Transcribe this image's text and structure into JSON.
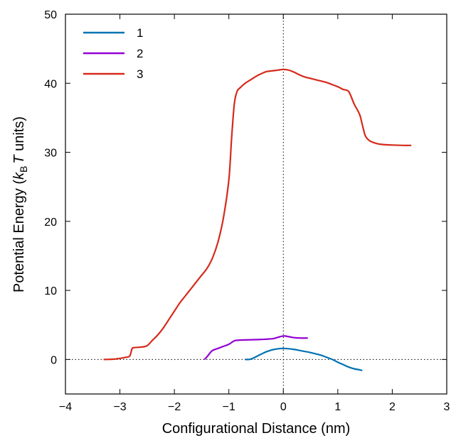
{
  "chart_data": {
    "type": "line",
    "xlabel": "Configurational Distance (nm)",
    "ylabel_parts": {
      "prefix": "Potential Energy (",
      "k": "k",
      "sub": "B",
      "t": "T",
      "suffix": " units)"
    },
    "xlim": [
      -4,
      3
    ],
    "ylim": [
      -5,
      50
    ],
    "xticks": [
      -4,
      -3,
      -2,
      -1,
      0,
      1,
      2,
      3
    ],
    "yticks": [
      0,
      10,
      20,
      30,
      40,
      50
    ],
    "xtick_labels": [
      "−4",
      "−3",
      "−2",
      "−1",
      "0",
      "1",
      "2",
      "3"
    ],
    "ytick_labels": [
      "0",
      "10",
      "20",
      "30",
      "40",
      "50"
    ],
    "reference_lines": {
      "x": 0,
      "y": 0,
      "style": "dotted"
    },
    "legend_position": "top-left",
    "series": [
      {
        "name": "1",
        "color": "#0072b2",
        "points": [
          [
            -0.7,
            0
          ],
          [
            -0.6,
            0.05
          ],
          [
            -0.5,
            0.4
          ],
          [
            -0.4,
            0.8
          ],
          [
            -0.3,
            1.15
          ],
          [
            -0.2,
            1.4
          ],
          [
            -0.1,
            1.55
          ],
          [
            0,
            1.6
          ],
          [
            0.1,
            1.55
          ],
          [
            0.2,
            1.45
          ],
          [
            0.3,
            1.3
          ],
          [
            0.4,
            1.15
          ],
          [
            0.5,
            1.0
          ],
          [
            0.6,
            0.8
          ],
          [
            0.7,
            0.6
          ],
          [
            0.8,
            0.3
          ],
          [
            0.9,
            0
          ],
          [
            1.0,
            -0.4
          ],
          [
            1.1,
            -0.75
          ],
          [
            1.2,
            -1.1
          ],
          [
            1.3,
            -1.35
          ],
          [
            1.4,
            -1.5
          ],
          [
            1.45,
            -1.6
          ]
        ]
      },
      {
        "name": "2",
        "color": "#9400d3",
        "points": [
          [
            -1.45,
            0
          ],
          [
            -1.4,
            0.4
          ],
          [
            -1.35,
            0.9
          ],
          [
            -1.3,
            1.3
          ],
          [
            -1.2,
            1.6
          ],
          [
            -1.1,
            1.9
          ],
          [
            -1.0,
            2.2
          ],
          [
            -0.9,
            2.7
          ],
          [
            -0.8,
            2.8
          ],
          [
            -0.6,
            2.85
          ],
          [
            -0.4,
            2.9
          ],
          [
            -0.2,
            3.0
          ],
          [
            -0.1,
            3.2
          ],
          [
            0,
            3.4
          ],
          [
            0.1,
            3.3
          ],
          [
            0.2,
            3.15
          ],
          [
            0.3,
            3.1
          ],
          [
            0.45,
            3.1
          ]
        ]
      },
      {
        "name": "3",
        "color": "#d62a1a",
        "points": [
          [
            -3.3,
            0
          ],
          [
            -3.1,
            0.05
          ],
          [
            -2.9,
            0.3
          ],
          [
            -2.82,
            0.5
          ],
          [
            -2.78,
            1.5
          ],
          [
            -2.75,
            1.7
          ],
          [
            -2.6,
            1.8
          ],
          [
            -2.5,
            2.0
          ],
          [
            -2.4,
            2.8
          ],
          [
            -2.3,
            3.6
          ],
          [
            -2.2,
            4.6
          ],
          [
            -2.1,
            5.8
          ],
          [
            -2.0,
            7.0
          ],
          [
            -1.9,
            8.2
          ],
          [
            -1.8,
            9.2
          ],
          [
            -1.7,
            10.2
          ],
          [
            -1.6,
            11.2
          ],
          [
            -1.5,
            12.2
          ],
          [
            -1.4,
            13.2
          ],
          [
            -1.3,
            14.7
          ],
          [
            -1.2,
            17.0
          ],
          [
            -1.1,
            20.5
          ],
          [
            -1.0,
            26.0
          ],
          [
            -0.95,
            32.0
          ],
          [
            -0.9,
            37.0
          ],
          [
            -0.85,
            38.8
          ],
          [
            -0.8,
            39.3
          ],
          [
            -0.7,
            40.0
          ],
          [
            -0.6,
            40.5
          ],
          [
            -0.5,
            41.0
          ],
          [
            -0.4,
            41.4
          ],
          [
            -0.3,
            41.7
          ],
          [
            -0.2,
            41.8
          ],
          [
            -0.1,
            41.9
          ],
          [
            0,
            42.0
          ],
          [
            0.1,
            41.9
          ],
          [
            0.2,
            41.6
          ],
          [
            0.3,
            41.2
          ],
          [
            0.4,
            40.9
          ],
          [
            0.5,
            40.7
          ],
          [
            0.6,
            40.5
          ],
          [
            0.7,
            40.3
          ],
          [
            0.8,
            40.1
          ],
          [
            0.9,
            39.8
          ],
          [
            1.0,
            39.5
          ],
          [
            1.1,
            39.1
          ],
          [
            1.2,
            38.8
          ],
          [
            1.3,
            37.0
          ],
          [
            1.4,
            35.5
          ],
          [
            1.45,
            34.0
          ],
          [
            1.5,
            32.5
          ],
          [
            1.55,
            31.9
          ],
          [
            1.6,
            31.6
          ],
          [
            1.7,
            31.3
          ],
          [
            1.8,
            31.15
          ],
          [
            2.0,
            31.05
          ],
          [
            2.2,
            31.0
          ],
          [
            2.35,
            31.0
          ]
        ]
      }
    ]
  }
}
